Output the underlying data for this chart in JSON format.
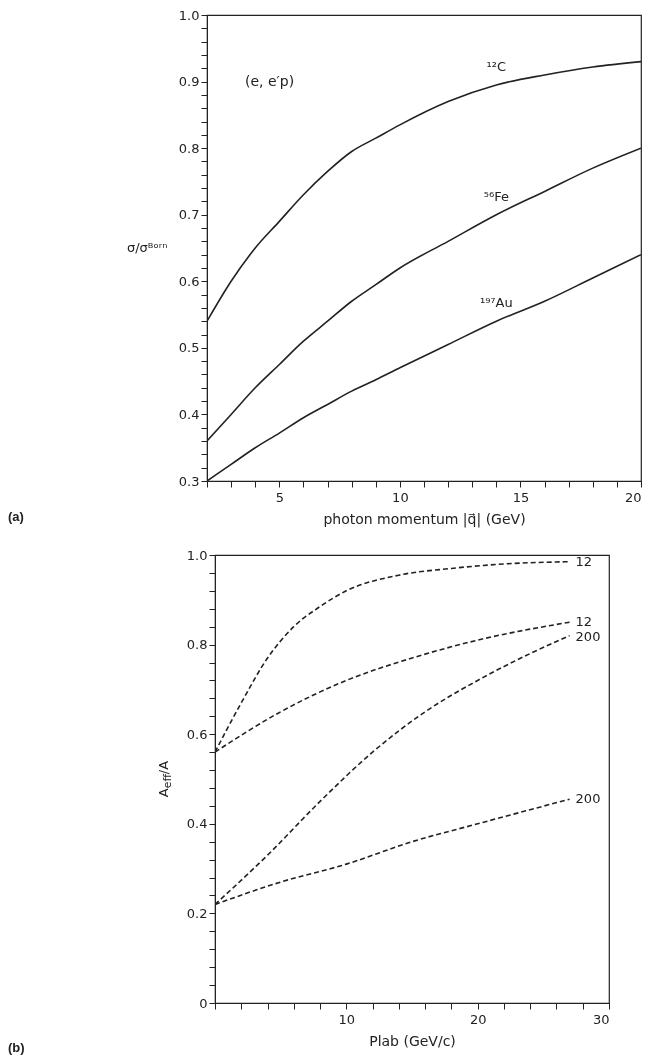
{
  "chart_data": [
    {
      "type": "line",
      "xlabel": "photon momentum |q⃗| (GeV)",
      "ylabel": "σ/σᴮᵒʳⁿ",
      "annotations": [
        "(e, e′p)",
        "(a)"
      ],
      "x": [
        2,
        3,
        4,
        5,
        6,
        7,
        8,
        9,
        10,
        12,
        14,
        16,
        18,
        20
      ],
      "series": [
        {
          "name": "¹²C",
          "color": "#222222",
          "line_style": "solid",
          "values": [
            0.54,
            0.6,
            0.65,
            0.69,
            0.73,
            0.765,
            0.795,
            0.815,
            0.835,
            0.87,
            0.895,
            0.91,
            0.922,
            0.93
          ]
        },
        {
          "name": "⁵⁶Fe",
          "color": "#222222",
          "line_style": "solid",
          "values": [
            0.36,
            0.4,
            0.44,
            0.475,
            0.51,
            0.54,
            0.57,
            0.595,
            0.62,
            0.66,
            0.7,
            0.735,
            0.77,
            0.8
          ]
        },
        {
          "name": "¹⁹⁷Au",
          "color": "#222222",
          "line_style": "solid",
          "values": [
            0.3,
            0.325,
            0.35,
            0.372,
            0.395,
            0.415,
            0.435,
            0.452,
            0.47,
            0.505,
            0.54,
            0.57,
            0.605,
            0.64
          ]
        }
      ],
      "xlim": [
        2,
        20
      ],
      "ylim": [
        0.3,
        1.0
      ],
      "xticks": [
        {
          "value": 2,
          "label": null
        },
        {
          "value": 3,
          "label": null
        },
        {
          "value": 4,
          "label": null
        },
        5,
        {
          "value": 6,
          "label": null
        },
        {
          "value": 7,
          "label": null
        },
        {
          "value": 8,
          "label": null
        },
        {
          "value": 9,
          "label": null
        },
        10,
        {
          "value": 11,
          "label": null
        },
        {
          "value": 12,
          "label": null
        },
        {
          "value": 13,
          "label": null
        },
        {
          "value": 14,
          "label": null
        },
        15,
        {
          "value": 16,
          "label": null
        },
        {
          "value": 17,
          "label": null
        },
        {
          "value": 18,
          "label": null
        },
        {
          "value": 19,
          "label": null
        },
        20
      ],
      "yticks": [
        0.3,
        {
          "value": 0.32,
          "label": null
        },
        {
          "value": 0.34,
          "label": null
        },
        {
          "value": 0.36,
          "label": null
        },
        {
          "value": 0.38,
          "label": null
        },
        0.4,
        {
          "value": 0.42,
          "label": null
        },
        {
          "value": 0.44,
          "label": null
        },
        {
          "value": 0.46,
          "label": null
        },
        {
          "value": 0.48,
          "label": null
        },
        0.5,
        {
          "value": 0.52,
          "label": null
        },
        {
          "value": 0.54,
          "label": null
        },
        {
          "value": 0.56,
          "label": null
        },
        {
          "value": 0.58,
          "label": null
        },
        0.6,
        {
          "value": 0.62,
          "label": null
        },
        {
          "value": 0.64,
          "label": null
        },
        {
          "value": 0.66,
          "label": null
        },
        {
          "value": 0.68,
          "label": null
        },
        0.7,
        {
          "value": 0.72,
          "label": null
        },
        {
          "value": 0.74,
          "label": null
        },
        {
          "value": 0.76,
          "label": null
        },
        {
          "value": 0.78,
          "label": null
        },
        0.8,
        {
          "value": 0.82,
          "label": null
        },
        {
          "value": 0.84,
          "label": null
        },
        {
          "value": 0.86,
          "label": null
        },
        {
          "value": 0.88,
          "label": null
        },
        0.9,
        {
          "value": 0.92,
          "label": null
        },
        {
          "value": 0.94,
          "label": null
        },
        {
          "value": 0.96,
          "label": null
        },
        {
          "value": 0.98,
          "label": null
        },
        {
          "value": 1.0,
          "label": "1.0"
        }
      ]
    },
    {
      "type": "line",
      "xlabel": "Plab  (GeV/c)",
      "ylabel": "A$_{eff}$/A",
      "annotations": [
        "(b)"
      ],
      "series": [
        {
          "name": "12",
          "color": "#222222",
          "line_style": "dashed",
          "x": [
            0,
            2,
            4,
            6,
            8,
            10,
            14,
            18,
            22,
            27
          ],
          "values": [
            0.56,
            0.67,
            0.77,
            0.84,
            0.885,
            0.92,
            0.955,
            0.97,
            0.98,
            0.985
          ]
        },
        {
          "name": "12",
          "color": "#222222",
          "line_style": "dashed",
          "x": [
            0,
            5,
            10,
            15,
            20,
            27
          ],
          "values": [
            0.56,
            0.65,
            0.72,
            0.77,
            0.81,
            0.85
          ]
        },
        {
          "name": "200",
          "color": "#222222",
          "line_style": "dashed",
          "x": [
            0,
            4,
            8,
            12,
            16,
            20,
            24,
            27
          ],
          "values": [
            0.22,
            0.33,
            0.45,
            0.56,
            0.65,
            0.72,
            0.78,
            0.82
          ]
        },
        {
          "name": "200",
          "color": "#222222",
          "line_style": "dashed",
          "x": [
            0,
            5,
            10,
            15,
            20,
            27
          ],
          "values": [
            0.22,
            0.27,
            0.31,
            0.36,
            0.4,
            0.455
          ]
        }
      ],
      "xlim": [
        0,
        30
      ],
      "ylim": [
        0,
        1.0
      ],
      "xticks": [
        {
          "value": 0,
          "label": null
        },
        {
          "value": 2,
          "label": null
        },
        {
          "value": 4,
          "label": null
        },
        {
          "value": 6,
          "label": null
        },
        {
          "value": 8,
          "label": null
        },
        10,
        {
          "value": 12,
          "label": null
        },
        {
          "value": 14,
          "label": null
        },
        {
          "value": 16,
          "label": null
        },
        {
          "value": 18,
          "label": null
        },
        20,
        {
          "value": 22,
          "label": null
        },
        {
          "value": 24,
          "label": null
        },
        {
          "value": 26,
          "label": null
        },
        {
          "value": 28,
          "label": null
        },
        30
      ],
      "yticks": [
        0,
        {
          "value": 0.04,
          "label": null
        },
        {
          "value": 0.08,
          "label": null
        },
        {
          "value": 0.12,
          "label": null
        },
        {
          "value": 0.16,
          "label": null
        },
        0.2,
        {
          "value": 0.24,
          "label": null
        },
        {
          "value": 0.28,
          "label": null
        },
        {
          "value": 0.32,
          "label": null
        },
        {
          "value": 0.36,
          "label": null
        },
        0.4,
        {
          "value": 0.44,
          "label": null
        },
        {
          "value": 0.48,
          "label": null
        },
        {
          "value": 0.52,
          "label": null
        },
        {
          "value": 0.56,
          "label": null
        },
        0.6,
        {
          "value": 0.64,
          "label": null
        },
        {
          "value": 0.68,
          "label": null
        },
        {
          "value": 0.72,
          "label": null
        },
        {
          "value": 0.76,
          "label": null
        },
        0.8,
        {
          "value": 0.84,
          "label": null
        },
        {
          "value": 0.88,
          "label": null
        },
        {
          "value": 0.92,
          "label": null
        },
        {
          "value": 0.96,
          "label": null
        },
        {
          "value": 1.0,
          "label": "1.0"
        }
      ]
    }
  ]
}
